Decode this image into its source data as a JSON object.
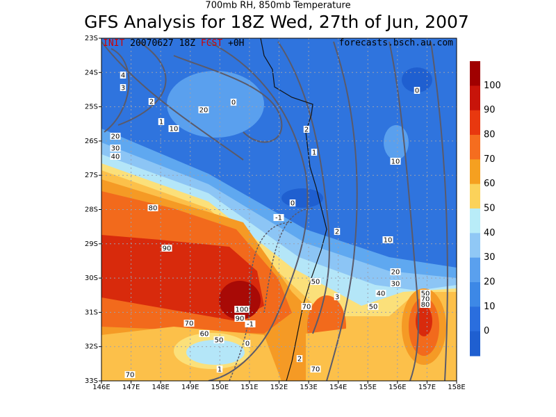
{
  "header": {
    "subtitle": "700mb RH, 850mb Temperature",
    "title": "GFS Analysis for 18Z Wed, 27th of Jun, 2007"
  },
  "info": {
    "init_label": "INIT",
    "init_time": "20070627 18Z",
    "fcst_label": "FCST",
    "fcst_value": "+0H",
    "source": "forecasts.bsch.au.com"
  },
  "lat_labels": [
    "23S",
    "24S",
    "25S",
    "26S",
    "27S",
    "28S",
    "29S",
    "30S",
    "31S",
    "32S",
    "33S"
  ],
  "lon_labels": [
    "146E",
    "147E",
    "148E",
    "149E",
    "150E",
    "151E",
    "152E",
    "153E",
    "154E",
    "155E",
    "156E",
    "157E",
    "158E"
  ],
  "colorbar": {
    "labels": [
      "100",
      "90",
      "80",
      "70",
      "60",
      "50",
      "40",
      "30",
      "20",
      "10",
      "0"
    ]
  },
  "contour_labels": [
    "4",
    "3",
    "2",
    "20",
    "0",
    "1",
    "10",
    "20",
    "30",
    "40",
    "2",
    "1",
    "0",
    "10",
    "0",
    "-1",
    "80",
    "2",
    "10",
    "90",
    "20",
    "30",
    "50",
    "40",
    "3",
    "70",
    "50",
    "50",
    "70",
    "80",
    "100",
    "90",
    "-1",
    "70",
    "60",
    "50",
    "0",
    "2",
    "70",
    "1",
    "70"
  ]
}
